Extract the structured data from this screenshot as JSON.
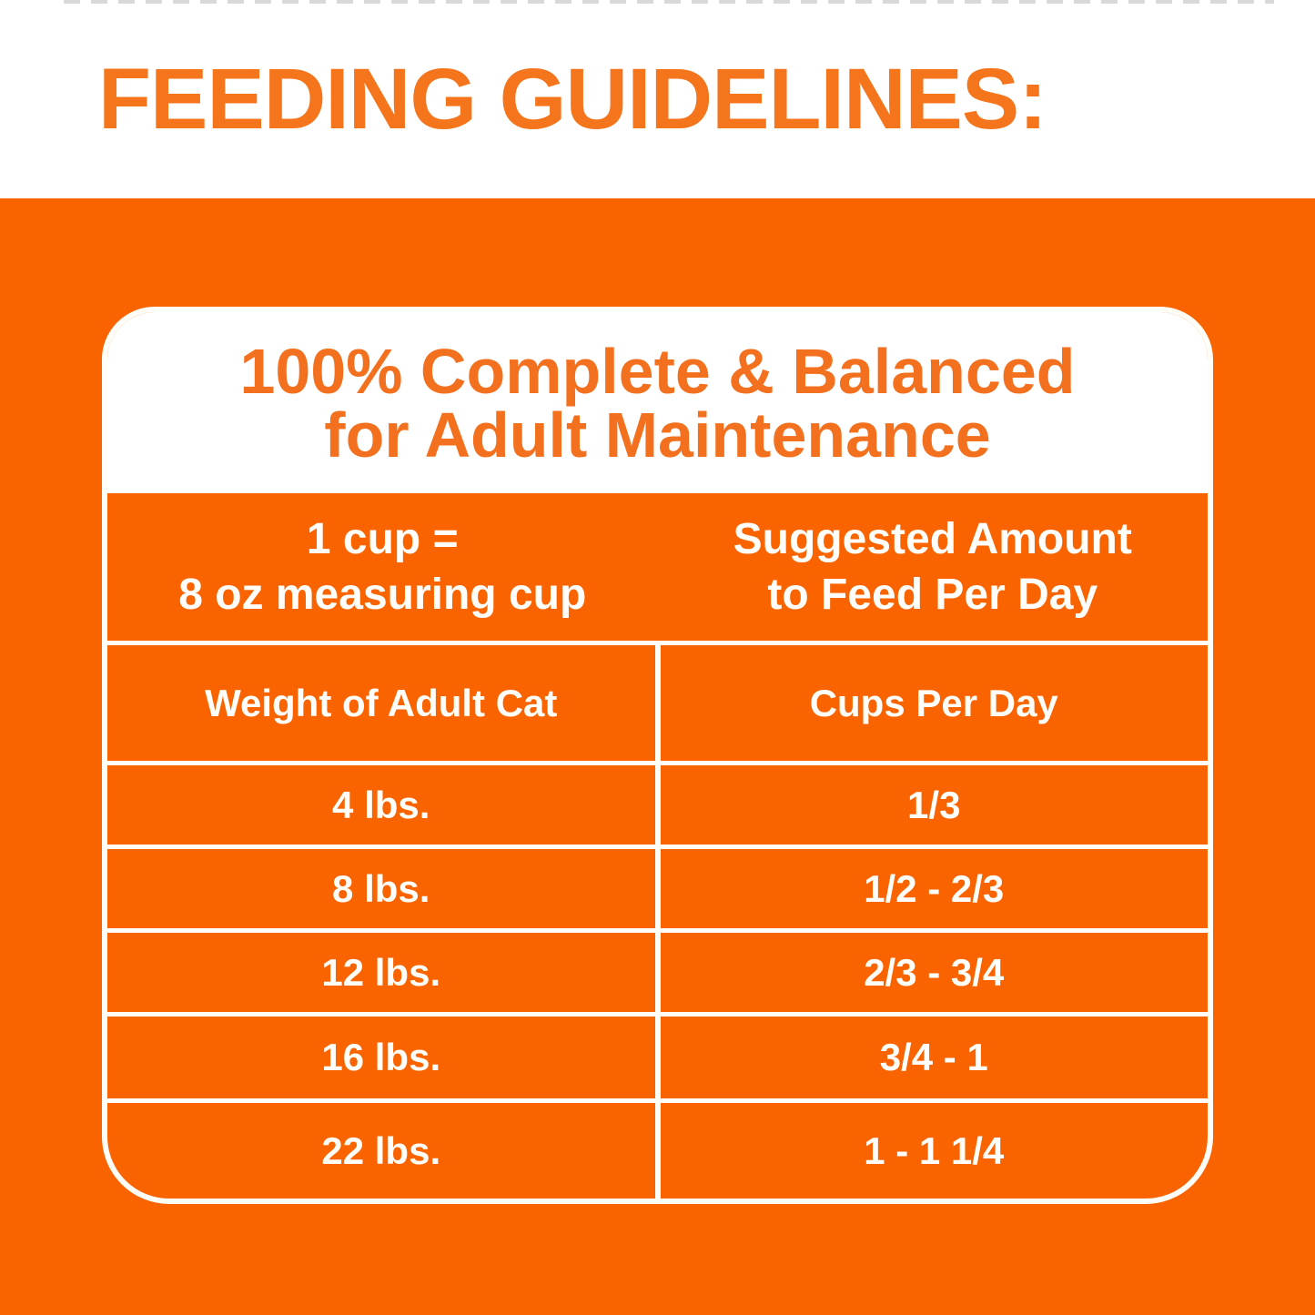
{
  "page": {
    "title": "FEEDING GUIDELINES:",
    "colors": {
      "orange_background": "#FA6400",
      "orange_heading_text": "#F4751C",
      "card_title_text": "#F3701E",
      "grid_line_white": "#FFFDF8",
      "cell_text_white": "#FFFEFA"
    }
  },
  "card": {
    "title_line1": "100% Complete & Balanced",
    "title_line2": "for Adult Maintenance",
    "measure_header": {
      "line1": "1 cup =",
      "line2": "8 oz measuring cup"
    },
    "amount_header": {
      "line1": "Suggested Amount",
      "line2": "to Feed Per Day"
    },
    "column_headers": [
      "Weight of Adult Cat",
      "Cups Per Day"
    ],
    "rows": [
      {
        "weight": "4 lbs.",
        "cups": "1/3"
      },
      {
        "weight": "8 lbs.",
        "cups": "1/2 - 2/3"
      },
      {
        "weight": "12 lbs.",
        "cups": "2/3 - 3/4"
      },
      {
        "weight": "16 lbs.",
        "cups": "3/4 - 1"
      },
      {
        "weight": "22 lbs.",
        "cups": "1 - 1 1/4"
      }
    ]
  }
}
